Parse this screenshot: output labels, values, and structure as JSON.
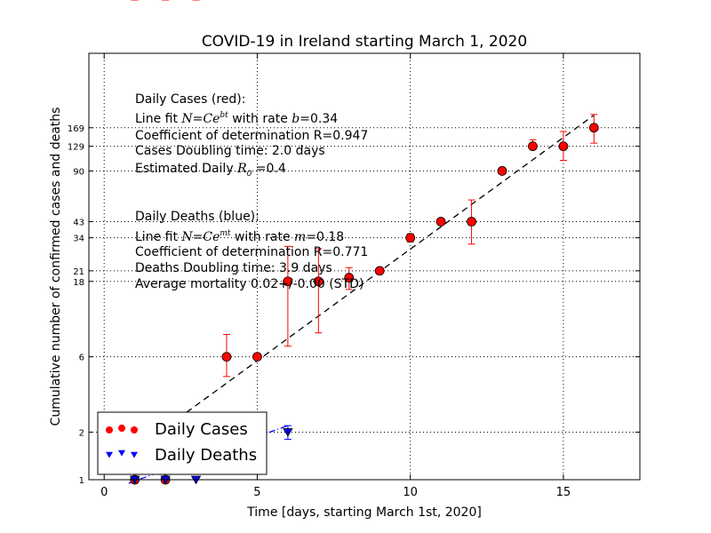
{
  "chart_data": {
    "type": "scatter",
    "title": "COVID-19 in Ireland starting March 1, 2020",
    "xlabel": "Time [days, starting March 1st, 2020]",
    "ylabel": "Cumulative number of confirmed cases and deaths",
    "xscale": "linear",
    "yscale": "log",
    "xlim": [
      -0.5,
      17.5
    ],
    "ylim": [
      1,
      500
    ],
    "grid": "dotted gridlines at selected y values and x major ticks",
    "x_ticks": [
      0,
      5,
      10,
      15
    ],
    "x_tick_labels": [
      "0",
      "5",
      "10",
      "15"
    ],
    "y_ticks": [
      1,
      2,
      6,
      18,
      21,
      34,
      43,
      90,
      129,
      169
    ],
    "y_tick_labels": [
      "1",
      "2",
      "6",
      "18",
      "21",
      "34",
      "43",
      "90",
      "129",
      "169"
    ],
    "series": [
      {
        "name": "Daily Cases",
        "color": "#ff0000",
        "marker": "circle",
        "x": [
          1,
          2,
          3,
          4,
          5,
          6,
          7,
          8,
          9,
          10,
          11,
          12,
          13,
          14,
          15,
          16
        ],
        "y": [
          1,
          1,
          2,
          6,
          6,
          18,
          18,
          19,
          21,
          34,
          43,
          43,
          90,
          129,
          129,
          169
        ],
        "err_low": [
          0,
          0,
          0,
          4.5,
          6,
          7,
          8.5,
          16,
          21,
          32,
          43,
          31,
          90,
          129,
          105,
          135
        ],
        "err_high": [
          0,
          0,
          0,
          8.3,
          6,
          30,
          29,
          22,
          21,
          36,
          43,
          59,
          90,
          142,
          160,
          205
        ]
      },
      {
        "name": "Daily Deaths",
        "color": "#0000ff",
        "marker": "triangle-down",
        "x": [
          1,
          2,
          3,
          6
        ],
        "y": [
          1,
          1,
          1,
          2
        ],
        "err_low": [
          1,
          1,
          1,
          1.8
        ],
        "err_high": [
          1,
          1,
          1,
          2.2
        ]
      }
    ],
    "fits": [
      {
        "name": "cases-fit",
        "color": "#000000",
        "style": "dashed",
        "x": [
          1,
          16
        ],
        "y": [
          1.54,
          203
        ]
      },
      {
        "name": "deaths-fit",
        "color": "#0000ff",
        "style": "dash-dot",
        "x": [
          0.8,
          6
        ],
        "y": [
          0.95,
          2.2
        ]
      }
    ],
    "annotations": {
      "cases": {
        "heading": "Daily Cases (red):",
        "fit_prefix": "Line fit ",
        "fit_formula": "N=Ce",
        "fit_exponent": "bt",
        "fit_rate_prefix": " with rate ",
        "fit_rate_var": "b",
        "fit_rate_value": "=0.34",
        "r": "Coefficient of determination R=0.947",
        "doubling": "Cases Doubling time: 2.0 days",
        "r0_prefix": "Estimated Daily ",
        "r0_var": "R",
        "r0_sub": "0",
        "r0_value": " =0.4"
      },
      "deaths": {
        "heading": "Daily Deaths (blue):",
        "fit_prefix": "Line fit ",
        "fit_formula": "N=Ce",
        "fit_exponent": "mt",
        "fit_rate_prefix": " with rate ",
        "fit_rate_var": "m",
        "fit_rate_value": "=0.18",
        "r": "Coefficient of determination R=0.771",
        "doubling": "Deaths Doubling time: 3.9 days",
        "mortality": "Average mortality 0.02+/-0.00 (STD)"
      }
    },
    "legend": {
      "position": "lower-left",
      "entries": [
        "Daily Cases",
        "Daily Deaths"
      ]
    }
  }
}
